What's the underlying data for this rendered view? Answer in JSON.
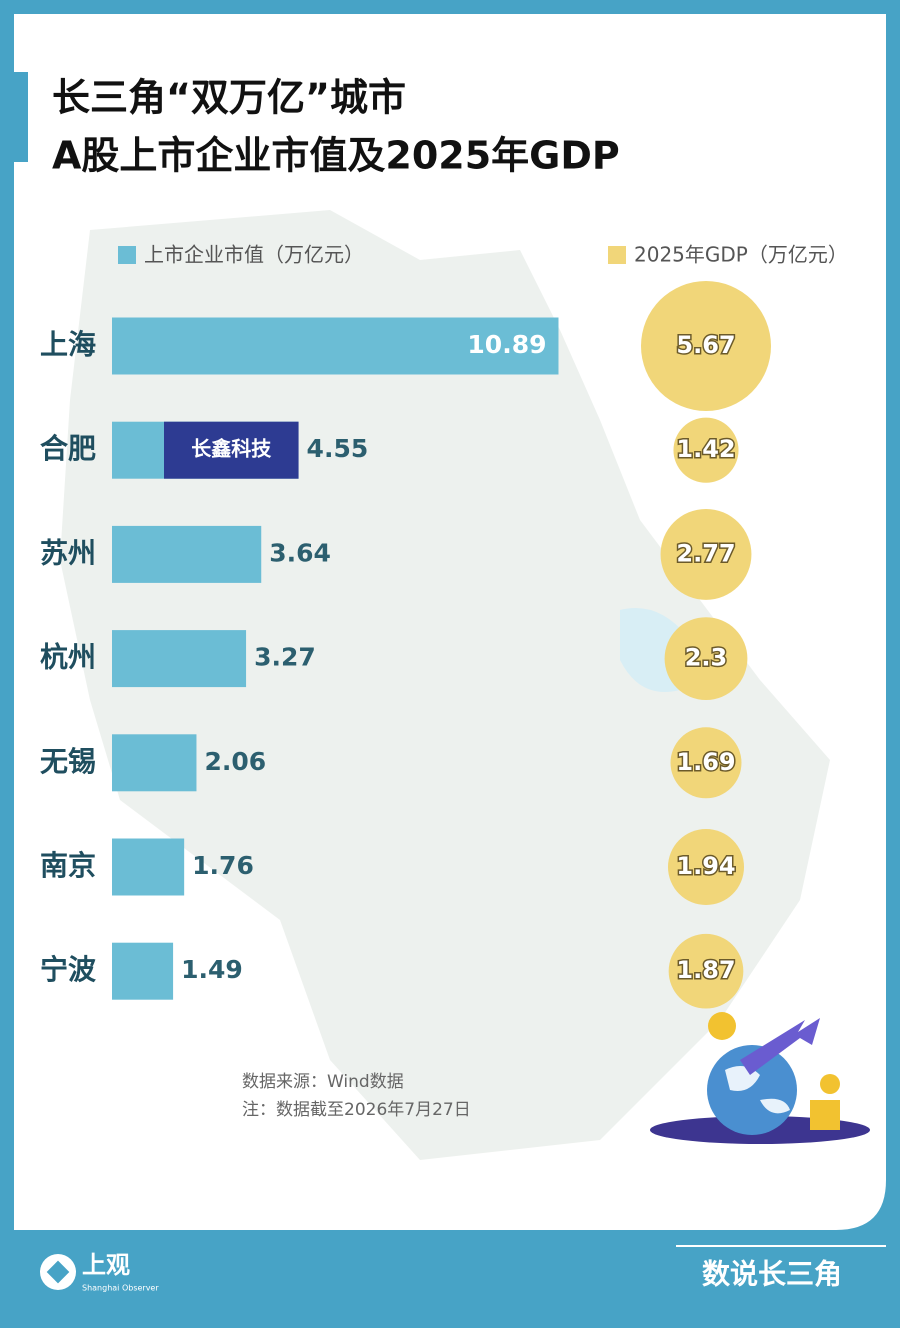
{
  "chart_data": {
    "type": "bar-bubble",
    "title": [
      "长三角“双万亿”城市",
      "A股上市企业市值及2025年GDP"
    ],
    "categories": [
      "上海",
      "合肥",
      "苏州",
      "杭州",
      "无锡",
      "南京",
      "宁波"
    ],
    "series": [
      {
        "name": "上市企业市值（万亿元）",
        "color": "#6bbdd5",
        "values": [
          10.89,
          4.55,
          3.64,
          3.27,
          2.06,
          1.76,
          1.49
        ]
      },
      {
        "name": "2025年GDP（万亿元）",
        "color": "#f1d679",
        "values": [
          5.67,
          1.42,
          2.77,
          2.3,
          1.69,
          1.94,
          1.87
        ]
      }
    ],
    "annotation": "长鑫科技",
    "notes": [
      "数据来源：Wind数据",
      "注：数据截至2026年7月27日"
    ]
  },
  "footer": {
    "brand": "上观",
    "brand_en": "Shanghai Observer",
    "column": "数说长三角"
  }
}
